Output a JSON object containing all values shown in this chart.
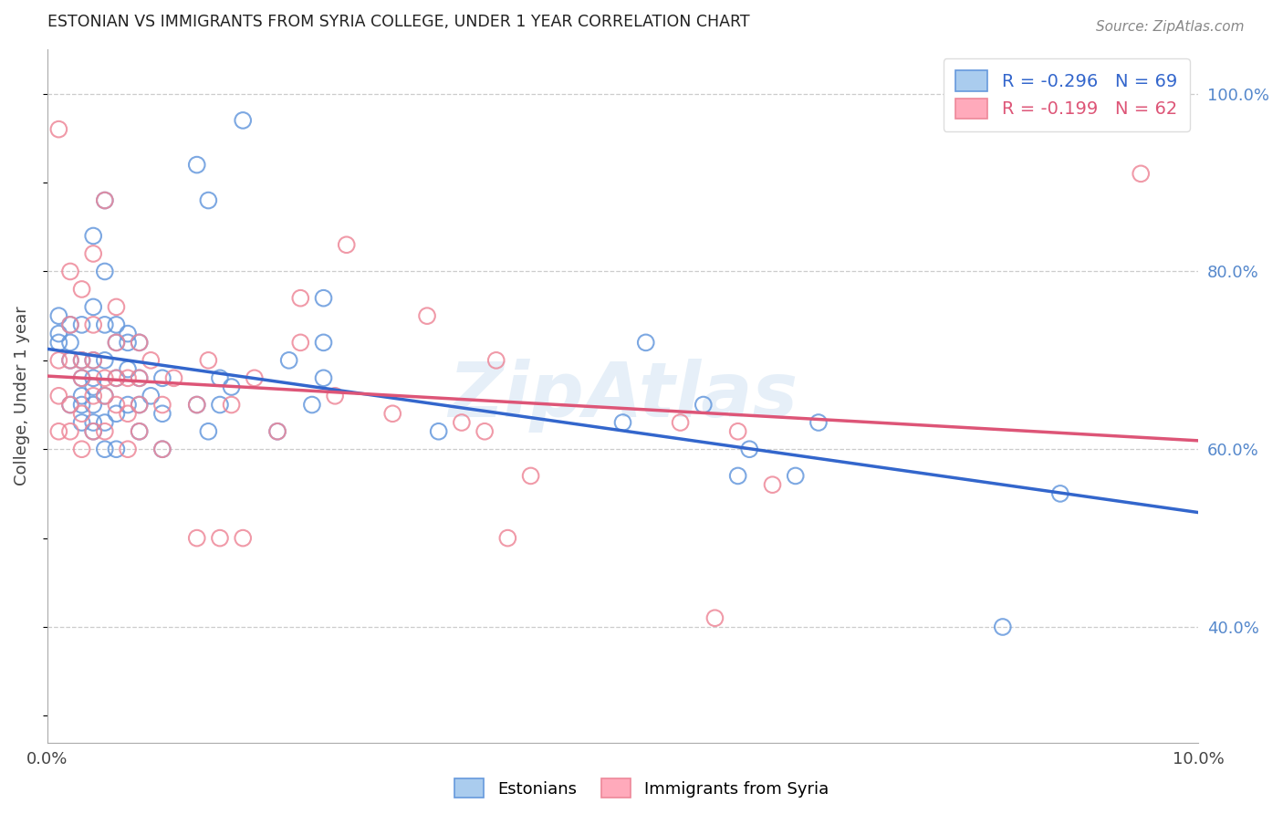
{
  "title": "ESTONIAN VS IMMIGRANTS FROM SYRIA COLLEGE, UNDER 1 YEAR CORRELATION CHART",
  "source": "Source: ZipAtlas.com",
  "ylabel": "College, Under 1 year",
  "legend_label1": "Estonians",
  "legend_label2": "Immigrants from Syria",
  "R1": -0.296,
  "N1": 69,
  "R2": -0.199,
  "N2": 62,
  "xlim": [
    0.0,
    0.1
  ],
  "ylim": [
    0.27,
    1.05
  ],
  "xtick_positions": [
    0.0,
    0.02,
    0.04,
    0.06,
    0.08,
    0.1
  ],
  "xticklabels": [
    "0.0%",
    "",
    "",
    "",
    "",
    "10.0%"
  ],
  "ytick_right_pos": [
    0.4,
    0.6,
    0.8,
    1.0
  ],
  "ytick_right_labels": [
    "40.0%",
    "60.0%",
    "80.0%",
    "100.0%"
  ],
  "color_blue_edge": "#6699dd",
  "color_pink_edge": "#ee8899",
  "color_blue_line": "#3366cc",
  "color_pink_line": "#dd5577",
  "color_legend_blue_face": "#aaccee",
  "color_legend_pink_face": "#ffaabb",
  "watermark": "ZipAtlas",
  "blue_x": [
    0.001,
    0.001,
    0.001,
    0.002,
    0.002,
    0.002,
    0.002,
    0.003,
    0.003,
    0.003,
    0.003,
    0.003,
    0.003,
    0.004,
    0.004,
    0.004,
    0.004,
    0.004,
    0.004,
    0.004,
    0.004,
    0.005,
    0.005,
    0.005,
    0.005,
    0.005,
    0.005,
    0.005,
    0.006,
    0.006,
    0.006,
    0.006,
    0.006,
    0.007,
    0.007,
    0.007,
    0.007,
    0.008,
    0.008,
    0.008,
    0.008,
    0.009,
    0.01,
    0.01,
    0.01,
    0.013,
    0.013,
    0.014,
    0.014,
    0.015,
    0.015,
    0.016,
    0.017,
    0.02,
    0.021,
    0.023,
    0.024,
    0.024,
    0.024,
    0.034,
    0.05,
    0.052,
    0.057,
    0.06,
    0.061,
    0.065,
    0.067,
    0.083,
    0.088
  ],
  "blue_y": [
    0.72,
    0.73,
    0.75,
    0.65,
    0.7,
    0.72,
    0.74,
    0.63,
    0.65,
    0.66,
    0.68,
    0.7,
    0.74,
    0.62,
    0.63,
    0.65,
    0.67,
    0.68,
    0.7,
    0.76,
    0.84,
    0.6,
    0.63,
    0.66,
    0.7,
    0.74,
    0.8,
    0.88,
    0.6,
    0.64,
    0.68,
    0.72,
    0.74,
    0.65,
    0.69,
    0.72,
    0.73,
    0.62,
    0.65,
    0.68,
    0.72,
    0.66,
    0.6,
    0.64,
    0.68,
    0.65,
    0.92,
    0.62,
    0.88,
    0.65,
    0.68,
    0.67,
    0.97,
    0.62,
    0.7,
    0.65,
    0.68,
    0.72,
    0.77,
    0.62,
    0.63,
    0.72,
    0.65,
    0.57,
    0.6,
    0.57,
    0.63,
    0.4,
    0.55
  ],
  "pink_x": [
    0.001,
    0.001,
    0.001,
    0.001,
    0.002,
    0.002,
    0.002,
    0.002,
    0.002,
    0.003,
    0.003,
    0.003,
    0.003,
    0.003,
    0.004,
    0.004,
    0.004,
    0.004,
    0.004,
    0.005,
    0.005,
    0.005,
    0.005,
    0.006,
    0.006,
    0.006,
    0.006,
    0.007,
    0.007,
    0.007,
    0.008,
    0.008,
    0.008,
    0.008,
    0.009,
    0.01,
    0.01,
    0.011,
    0.013,
    0.013,
    0.014,
    0.015,
    0.016,
    0.017,
    0.018,
    0.02,
    0.022,
    0.022,
    0.025,
    0.026,
    0.03,
    0.033,
    0.036,
    0.038,
    0.039,
    0.04,
    0.042,
    0.055,
    0.058,
    0.06,
    0.063,
    0.095
  ],
  "pink_y": [
    0.62,
    0.66,
    0.7,
    0.96,
    0.62,
    0.65,
    0.7,
    0.74,
    0.8,
    0.6,
    0.64,
    0.68,
    0.7,
    0.78,
    0.62,
    0.66,
    0.7,
    0.74,
    0.82,
    0.62,
    0.66,
    0.68,
    0.88,
    0.65,
    0.68,
    0.72,
    0.76,
    0.6,
    0.64,
    0.68,
    0.62,
    0.65,
    0.68,
    0.72,
    0.7,
    0.6,
    0.65,
    0.68,
    0.5,
    0.65,
    0.7,
    0.5,
    0.65,
    0.5,
    0.68,
    0.62,
    0.72,
    0.77,
    0.66,
    0.83,
    0.64,
    0.75,
    0.63,
    0.62,
    0.7,
    0.5,
    0.57,
    0.63,
    0.41,
    0.62,
    0.56,
    0.91
  ]
}
